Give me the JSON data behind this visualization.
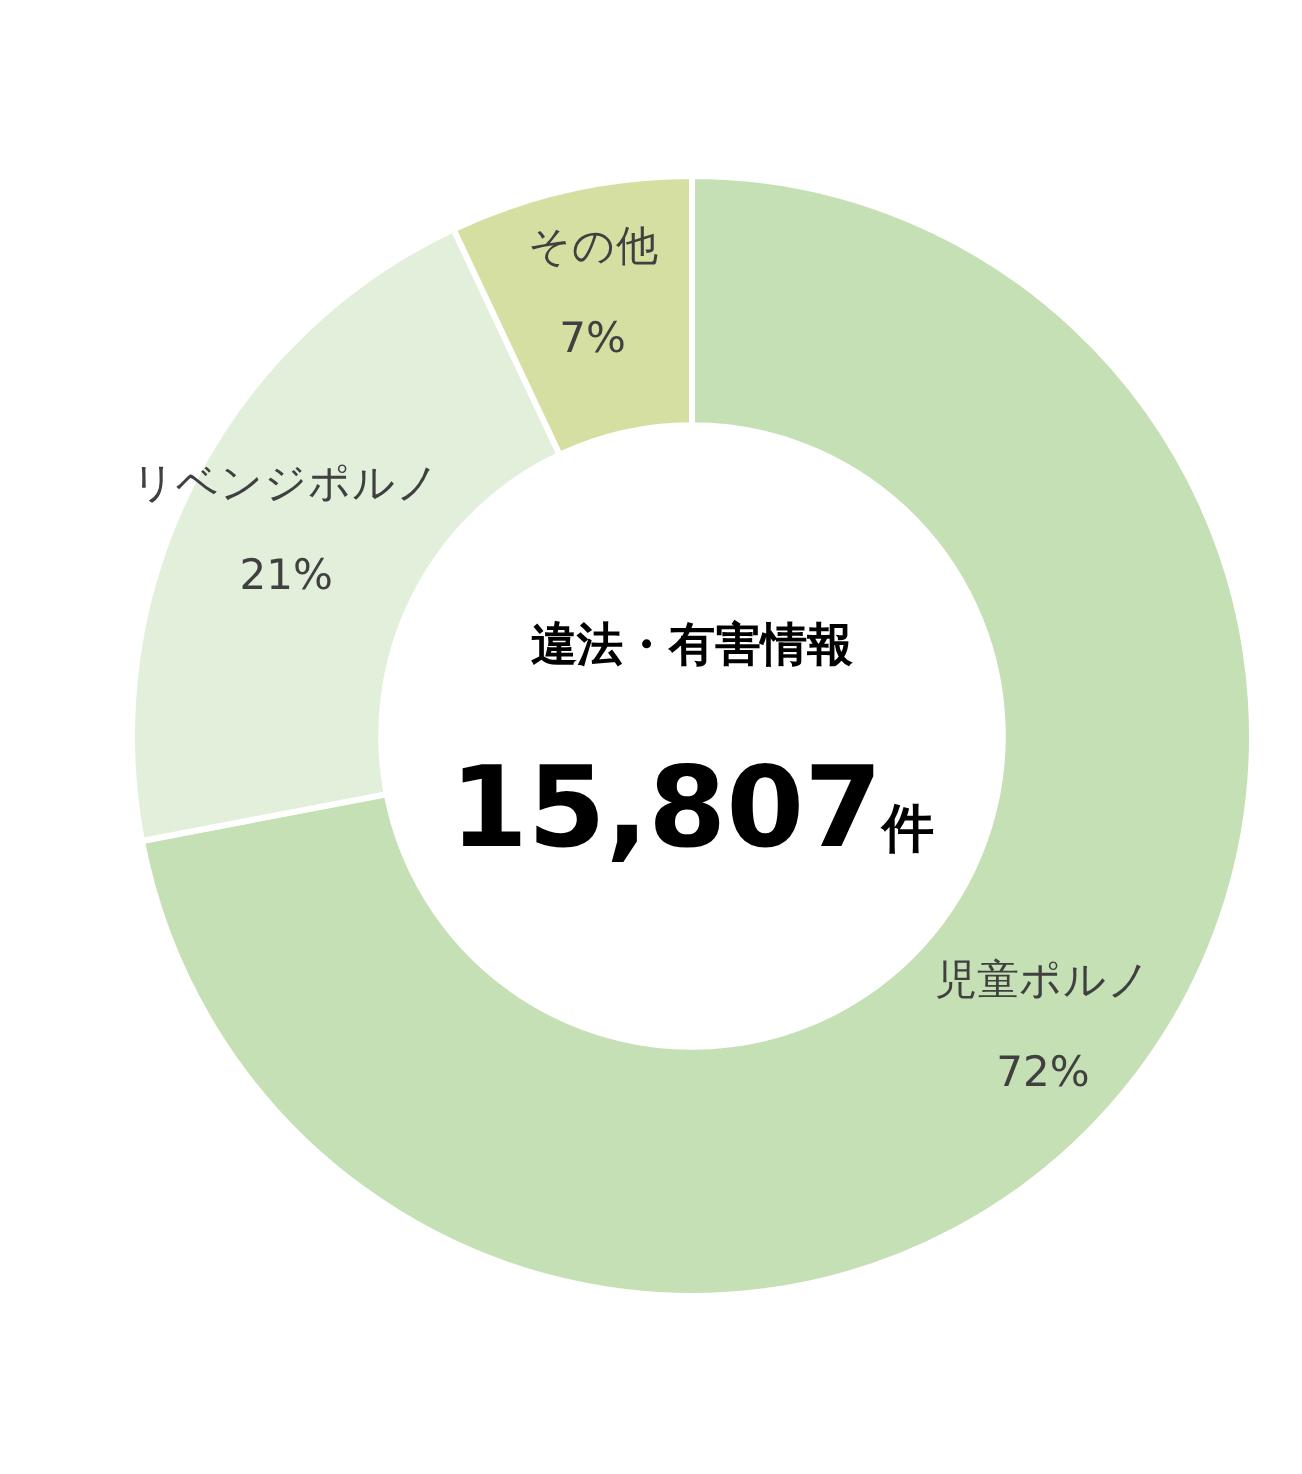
{
  "chart_data": {
    "type": "donut",
    "title": "違法・有害情報",
    "annotations": [
      "15,807件"
    ],
    "categories": [
      "児童ポルノ",
      "リベンジポルノ",
      "その他"
    ],
    "values": [
      72,
      21,
      7
    ],
    "value_labels": [
      "72%",
      "21%",
      "7%"
    ],
    "colors": [
      "#c5e0b4",
      "#e2efda",
      "#d5dfa2"
    ]
  }
}
